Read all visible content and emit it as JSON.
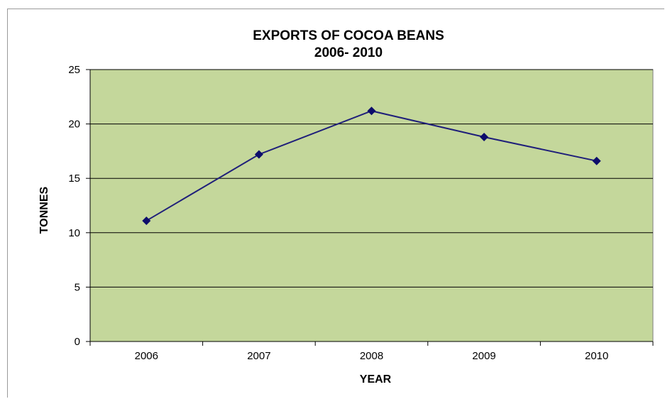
{
  "chart_data": {
    "type": "line",
    "title": "EXPORTS OF COCOA BEANS",
    "subtitle": "2006- 2010",
    "xlabel": "YEAR",
    "ylabel": "TONNES",
    "categories": [
      "2006",
      "2007",
      "2008",
      "2009",
      "2010"
    ],
    "series": [
      {
        "values": [
          11.1,
          17.2,
          21.2,
          18.8,
          16.6
        ]
      }
    ],
    "ylim": [
      0,
      25
    ],
    "yticks": [
      0,
      5,
      10,
      15,
      20,
      25
    ],
    "grid": true,
    "legend": "none",
    "colors": {
      "plot_background": "#c4d79b",
      "line": "#1f1f7a",
      "marker": "#0d0d6b",
      "gridline": "#000000"
    }
  }
}
